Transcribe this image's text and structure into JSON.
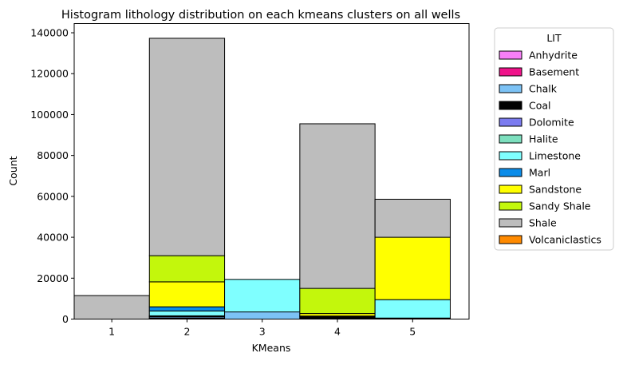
{
  "chart_data": {
    "type": "bar",
    "stacked": true,
    "title": "Histogram lithology distribution on each kmeans clusters on all wells",
    "xlabel": "KMeans",
    "ylabel": "Count",
    "categories": [
      "1",
      "2",
      "3",
      "4",
      "5"
    ],
    "x_range": [
      0.5,
      5.75
    ],
    "ylim": [
      0,
      144500
    ],
    "yticks": [
      0,
      20000,
      40000,
      60000,
      80000,
      100000,
      120000,
      140000
    ],
    "grid": false,
    "legend_title": "LIT",
    "legend_position": "outside-right",
    "series": [
      {
        "name": "Anhydrite",
        "color": "#f77ff7",
        "values": [
          0,
          300,
          0,
          0,
          0
        ]
      },
      {
        "name": "Basement",
        "color": "#ef138a",
        "values": [
          0,
          100,
          0,
          0,
          0
        ]
      },
      {
        "name": "Chalk",
        "color": "#7cc2f5",
        "values": [
          0,
          600,
          3500,
          200,
          100
        ]
      },
      {
        "name": "Coal",
        "color": "#000000",
        "values": [
          0,
          300,
          0,
          800,
          400
        ]
      },
      {
        "name": "Dolomite",
        "color": "#7b7bf0",
        "values": [
          0,
          100,
          0,
          0,
          0
        ]
      },
      {
        "name": "Halite",
        "color": "#7ddfbe",
        "values": [
          0,
          200,
          0,
          0,
          0
        ]
      },
      {
        "name": "Limestone",
        "color": "#7fffff",
        "values": [
          0,
          2400,
          15900,
          400,
          9000
        ]
      },
      {
        "name": "Marl",
        "color": "#0b8ce9",
        "values": [
          0,
          2000,
          0,
          100,
          0
        ]
      },
      {
        "name": "Sandstone",
        "color": "#ffff00",
        "values": [
          0,
          12200,
          0,
          1200,
          30500
        ]
      },
      {
        "name": "Sandy Shale",
        "color": "#c3f70c",
        "values": [
          0,
          12800,
          0,
          12300,
          0
        ]
      },
      {
        "name": "Shale",
        "color": "#bdbdbd",
        "values": [
          11500,
          106300,
          0,
          80500,
          18600
        ]
      },
      {
        "name": "Volcaniclastics",
        "color": "#ff8a00",
        "values": [
          0,
          0,
          0,
          0,
          0
        ]
      }
    ]
  }
}
